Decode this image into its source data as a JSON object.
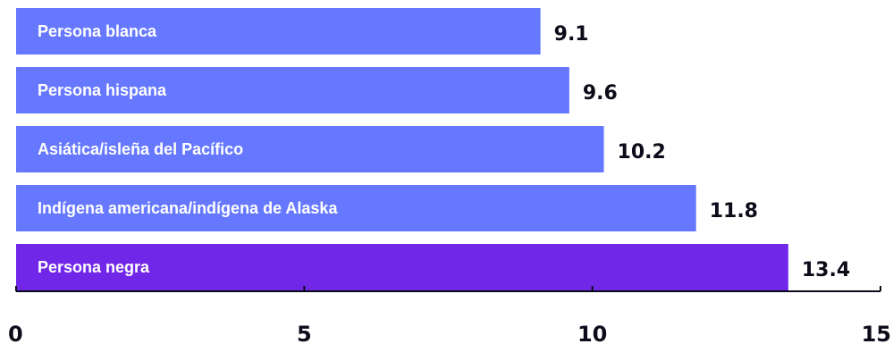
{
  "chart_data": {
    "type": "bar",
    "orientation": "horizontal",
    "categories": [
      "Persona blanca",
      "Persona hispana",
      "Asiática/isleña del Pacífico",
      "Indígena americana/indígena de Alaska",
      "Persona negra"
    ],
    "values": [
      9.1,
      9.6,
      10.2,
      11.8,
      13.4
    ],
    "value_labels": [
      "9.1",
      "9.6",
      "10.2",
      "11.8",
      "13.4"
    ],
    "highlight_index": 4,
    "xlim": [
      0,
      15
    ],
    "x_ticks": [
      0,
      5,
      10,
      15
    ],
    "x_tick_labels": [
      "0",
      "5",
      "10",
      "15"
    ],
    "grid": false,
    "legend": "none"
  },
  "colors": {
    "bar": "#6678ff",
    "highlight_bar": "#7027e8",
    "axis": "#0b0b1a",
    "text_dark": "#0b0b1a",
    "bar_text": "#ffffff"
  }
}
